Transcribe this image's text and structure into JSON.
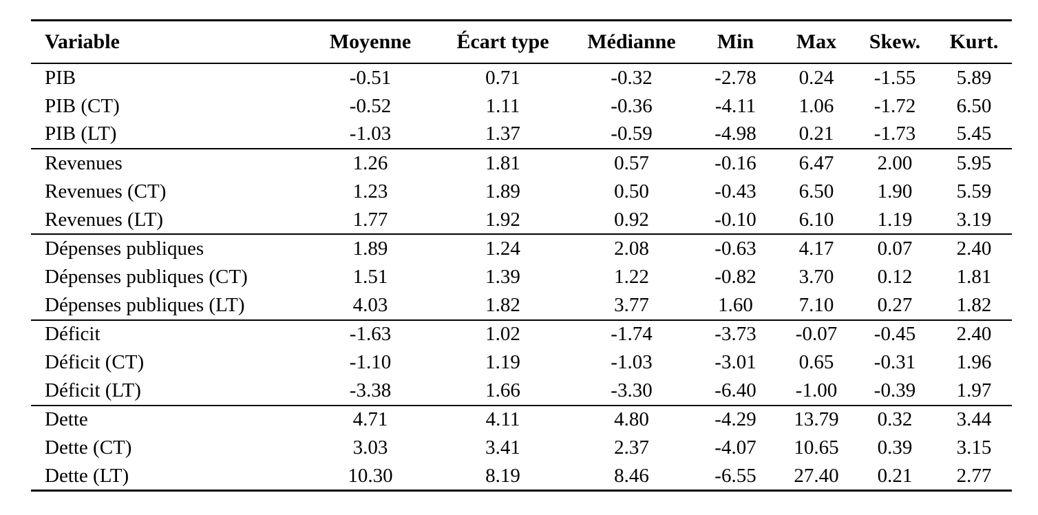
{
  "table": {
    "columns": [
      "Variable",
      "Moyenne",
      "Écart type",
      "Médianne",
      "Min",
      "Max",
      "Skew.",
      "Kurt."
    ],
    "groups": [
      {
        "rows": [
          {
            "variable": "PIB",
            "values": [
              "-0.51",
              "0.71",
              "-0.32",
              "-2.78",
              "0.24",
              "-1.55",
              "5.89"
            ]
          },
          {
            "variable": "PIB (CT)",
            "values": [
              "-0.52",
              "1.11",
              "-0.36",
              "-4.11",
              "1.06",
              "-1.72",
              "6.50"
            ]
          },
          {
            "variable": "PIB (LT)",
            "values": [
              "-1.03",
              "1.37",
              "-0.59",
              "-4.98",
              "0.21",
              "-1.73",
              "5.45"
            ]
          }
        ]
      },
      {
        "rows": [
          {
            "variable": "Revenues",
            "values": [
              "1.26",
              "1.81",
              "0.57",
              "-0.16",
              "6.47",
              "2.00",
              "5.95"
            ]
          },
          {
            "variable": "Revenues (CT)",
            "values": [
              "1.23",
              "1.89",
              "0.50",
              "-0.43",
              "6.50",
              "1.90",
              "5.59"
            ]
          },
          {
            "variable": "Revenues (LT)",
            "values": [
              "1.77",
              "1.92",
              "0.92",
              "-0.10",
              "6.10",
              "1.19",
              "3.19"
            ]
          }
        ]
      },
      {
        "rows": [
          {
            "variable": "Dépenses publiques",
            "values": [
              "1.89",
              "1.24",
              "2.08",
              "-0.63",
              "4.17",
              "0.07",
              "2.40"
            ]
          },
          {
            "variable": "Dépenses publiques (CT)",
            "values": [
              "1.51",
              "1.39",
              "1.22",
              "-0.82",
              "3.70",
              "0.12",
              "1.81"
            ]
          },
          {
            "variable": "Dépenses publiques (LT)",
            "values": [
              "4.03",
              "1.82",
              "3.77",
              "1.60",
              "7.10",
              "0.27",
              "1.82"
            ]
          }
        ]
      },
      {
        "rows": [
          {
            "variable": "Déficit",
            "values": [
              "-1.63",
              "1.02",
              "-1.74",
              "-3.73",
              "-0.07",
              "-0.45",
              "2.40"
            ]
          },
          {
            "variable": "Déficit (CT)",
            "values": [
              "-1.10",
              "1.19",
              "-1.03",
              "-3.01",
              "0.65",
              "-0.31",
              "1.96"
            ]
          },
          {
            "variable": "Déficit (LT)",
            "values": [
              "-3.38",
              "1.66",
              "-3.30",
              "-6.40",
              "-1.00",
              "-0.39",
              "1.97"
            ]
          }
        ]
      },
      {
        "rows": [
          {
            "variable": "Dette",
            "values": [
              "4.71",
              "4.11",
              "4.80",
              "-4.29",
              "13.79",
              "0.32",
              "3.44"
            ]
          },
          {
            "variable": "Dette (CT)",
            "values": [
              "3.03",
              "3.41",
              "2.37",
              "-4.07",
              "10.65",
              "0.39",
              "3.15"
            ]
          },
          {
            "variable": "Dette (LT)",
            "values": [
              "10.30",
              "8.19",
              "8.46",
              "-6.55",
              "27.40",
              "0.21",
              "2.77"
            ]
          }
        ]
      }
    ]
  },
  "colors": {
    "text": "#000000",
    "rule": "#000000",
    "background": "#ffffff"
  }
}
